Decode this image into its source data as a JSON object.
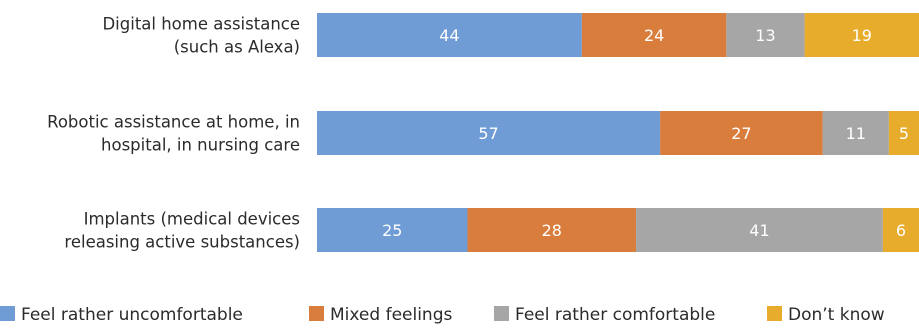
{
  "chart_data": {
    "type": "bar",
    "orientation": "horizontal",
    "stacked": true,
    "categories": [
      [
        "Digital home assistance",
        "(such as Alexa)"
      ],
      [
        "Robotic assistance at home, in",
        "hospital, in nursing care"
      ],
      [
        "Implants (medical devices",
        "releasing active substances)"
      ]
    ],
    "series": [
      {
        "name": "Feel rather uncomfortable",
        "color": "#6f9cd4",
        "values": [
          44,
          57,
          25
        ]
      },
      {
        "name": "Mixed feelings",
        "color": "#d97d3d",
        "values": [
          24,
          27,
          28
        ]
      },
      {
        "name": "Feel rather comfortable",
        "color": "#a6a6a6",
        "values": [
          13,
          11,
          41
        ]
      },
      {
        "name": "Don’t know",
        "color": "#e8ac2c",
        "values": [
          19,
          5,
          6
        ]
      }
    ],
    "xlim": [
      0,
      100
    ],
    "grid": false,
    "legend": "bottom",
    "title": "",
    "xlabel": "",
    "ylabel": ""
  }
}
